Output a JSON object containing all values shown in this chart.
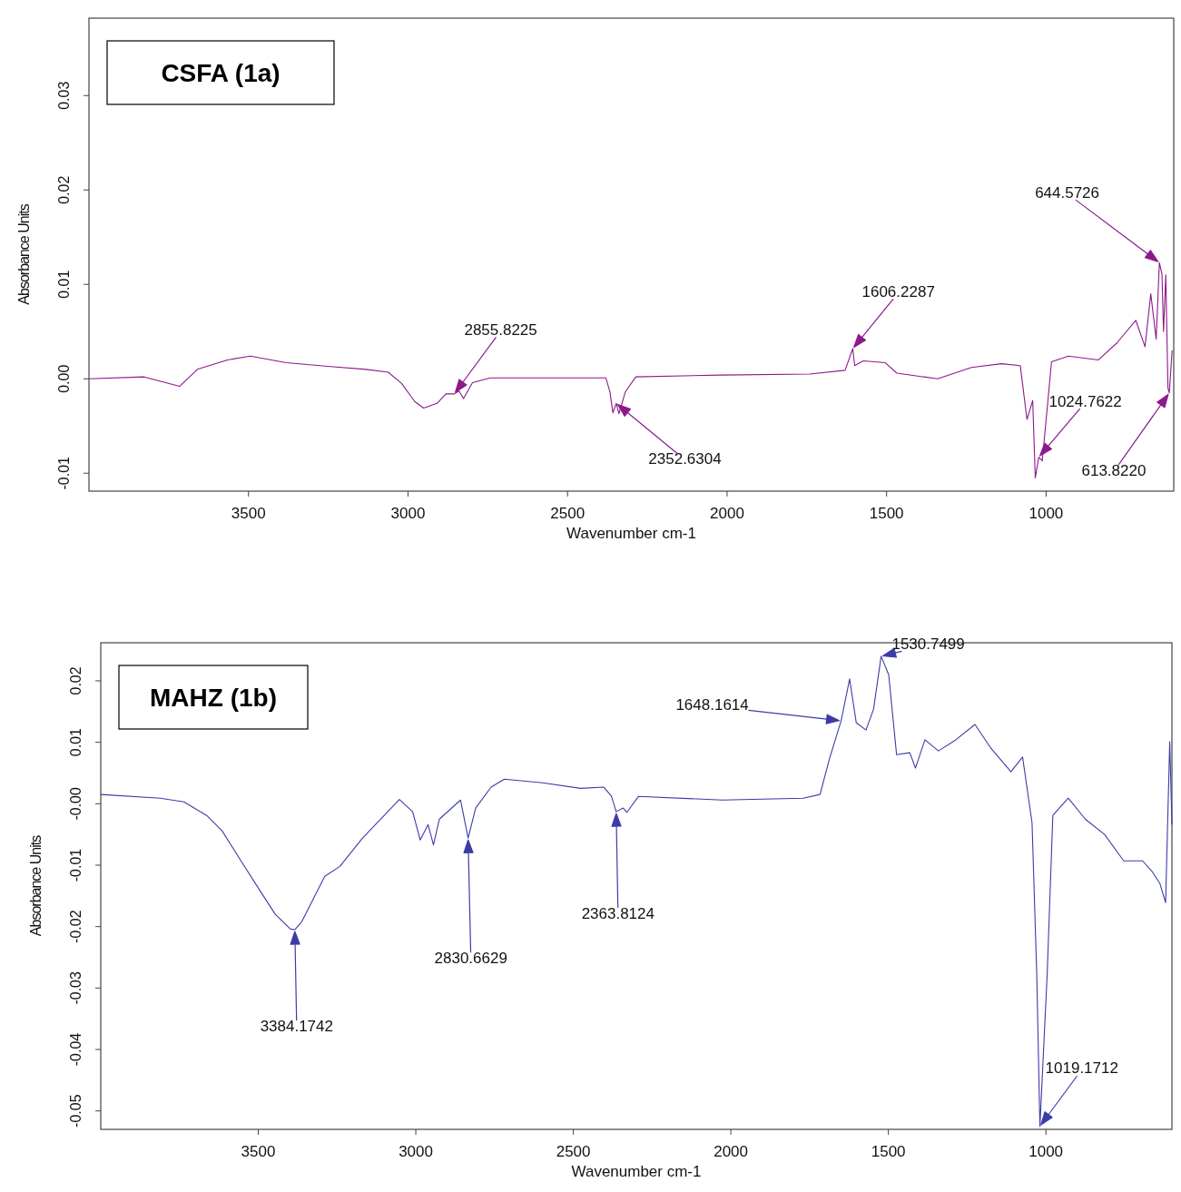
{
  "chart_data": [
    {
      "type": "line",
      "title": "CSFA (1a)",
      "xlabel": "Wavenumber cm-1",
      "ylabel": "Absorbance Units",
      "xlim": [
        4000,
        600
      ],
      "ylim": [
        -0.0119,
        0.0382
      ],
      "xticks": [
        3500,
        3000,
        2500,
        2000,
        1500,
        1000
      ],
      "yticks": [
        -0.01,
        {
          "value": 0,
          "label": "0.00"
        },
        0.01,
        0.02,
        0.03
      ],
      "series": [
        {
          "color": "#8b1a8b",
          "x": [
            4000,
            3827,
            3716,
            3660,
            3566,
            3494,
            3382,
            3243,
            3132,
            3062,
            3020,
            2979,
            2951,
            2909,
            2881,
            2855,
            2840,
            2826,
            2798,
            2742,
            2575,
            2380,
            2367,
            2358,
            2347,
            2339,
            2319,
            2286,
            2019,
            1741,
            1630,
            1606,
            1600,
            1573,
            1504,
            1468,
            1340,
            1234,
            1140,
            1081,
            1060,
            1042,
            1034,
            1023,
            1012,
            983,
            930,
            836,
            778,
            719,
            690,
            672,
            655,
            645,
            637,
            632,
            625,
            618,
            614,
            605
          ],
          "values": [
            0,
            0.0002,
            -0.0008,
            0.001,
            0.002,
            0.0024,
            0.0017,
            0.0013,
            0.001,
            0.0007,
            -0.0005,
            -0.0024,
            -0.0031,
            -0.0026,
            -0.0016,
            -0.0016,
            -0.0013,
            -0.0021,
            -0.0004,
            0.0001,
            0.0001,
            0.0001,
            -0.0014,
            -0.0036,
            -0.0026,
            -0.0037,
            -0.0014,
            0.0002,
            0.0004,
            0.0005,
            0.0009,
            0.0032,
            0.0014,
            0.0019,
            0.0017,
            0.0006,
            0,
            0.0012,
            0.0016,
            0.0014,
            -0.0043,
            -0.0023,
            -0.0105,
            -0.0083,
            -0.0087,
            0.0018,
            0.0024,
            0.002,
            0.0038,
            0.0062,
            0.0034,
            0.009,
            0.0042,
            0.0123,
            0.0111,
            0.005,
            0.011,
            -0.001,
            -0.0015,
            0.003
          ]
        }
      ],
      "annotations": [
        "2855.8225",
        "2352.6304",
        "1606.2287",
        "1024.7622",
        "644.5726",
        "613.8220"
      ]
    },
    {
      "type": "line",
      "title": "MAHZ (1b)",
      "xlabel": "Wavenumber cm-1",
      "ylabel": "Absorbance Units",
      "xlim": [
        4000,
        600
      ],
      "ylim": [
        -0.053,
        0.0262
      ],
      "xticks": [
        3500,
        3000,
        2500,
        2000,
        1500,
        1000
      ],
      "yticks": [
        -0.05,
        -0.04,
        -0.03,
        -0.02,
        -0.01,
        {
          "value": 0,
          "label": "-0.00"
        },
        0.01,
        0.02
      ],
      "series": [
        {
          "color": "#3c3ca8",
          "x": [
            4000,
            3811,
            3736,
            3664,
            3615,
            3555,
            3494,
            3446,
            3398,
            3384,
            3362,
            3289,
            3241,
            3169,
            3052,
            3010,
            2986,
            2961,
            2944,
            2925,
            2858,
            2834,
            2810,
            2761,
            2719,
            2598,
            2477,
            2403,
            2379,
            2364,
            2342,
            2330,
            2293,
            2027,
            1771,
            1717,
            1687,
            1650,
            1623,
            1602,
            1571,
            1547,
            1523,
            1499,
            1474,
            1432,
            1414,
            1384,
            1341,
            1286,
            1225,
            1177,
            1111,
            1074,
            1044,
            1029,
            1019,
            996,
            978,
            929,
            875,
            814,
            753,
            693,
            662,
            638,
            620,
            607,
            600
          ],
          "values": [
            0.0015,
            0.0009,
            0.0003,
            -0.0019,
            -0.0044,
            -0.0093,
            -0.0142,
            -0.018,
            -0.0204,
            -0.0205,
            -0.0192,
            -0.0118,
            -0.0102,
            -0.0056,
            0.0007,
            -0.0013,
            -0.0059,
            -0.0034,
            -0.0067,
            -0.0025,
            0.0006,
            -0.0056,
            -0.0007,
            0.0027,
            0.004,
            0.0034,
            0.0025,
            0.0027,
            0.0012,
            -0.0013,
            -0.0007,
            -0.0014,
            0.0012,
            0.0006,
            0.0009,
            0.0015,
            0.0073,
            0.0135,
            0.0203,
            0.0132,
            0.012,
            0.0154,
            0.024,
            0.021,
            0.008,
            0.0083,
            0.0058,
            0.0104,
            0.0086,
            0.0104,
            0.0129,
            0.0092,
            0.0052,
            0.0076,
            -0.0031,
            -0.0278,
            -0.0525,
            -0.0278,
            -0.0019,
            0.0009,
            -0.0025,
            -0.005,
            -0.0093,
            -0.0093,
            -0.0111,
            -0.013,
            -0.0161,
            0.0101,
            -0.0034
          ]
        }
      ],
      "annotations": [
        "3384.1742",
        "2830.6629",
        "2363.8124",
        "1648.1614",
        "1530.7499",
        "1019.1712"
      ]
    }
  ]
}
